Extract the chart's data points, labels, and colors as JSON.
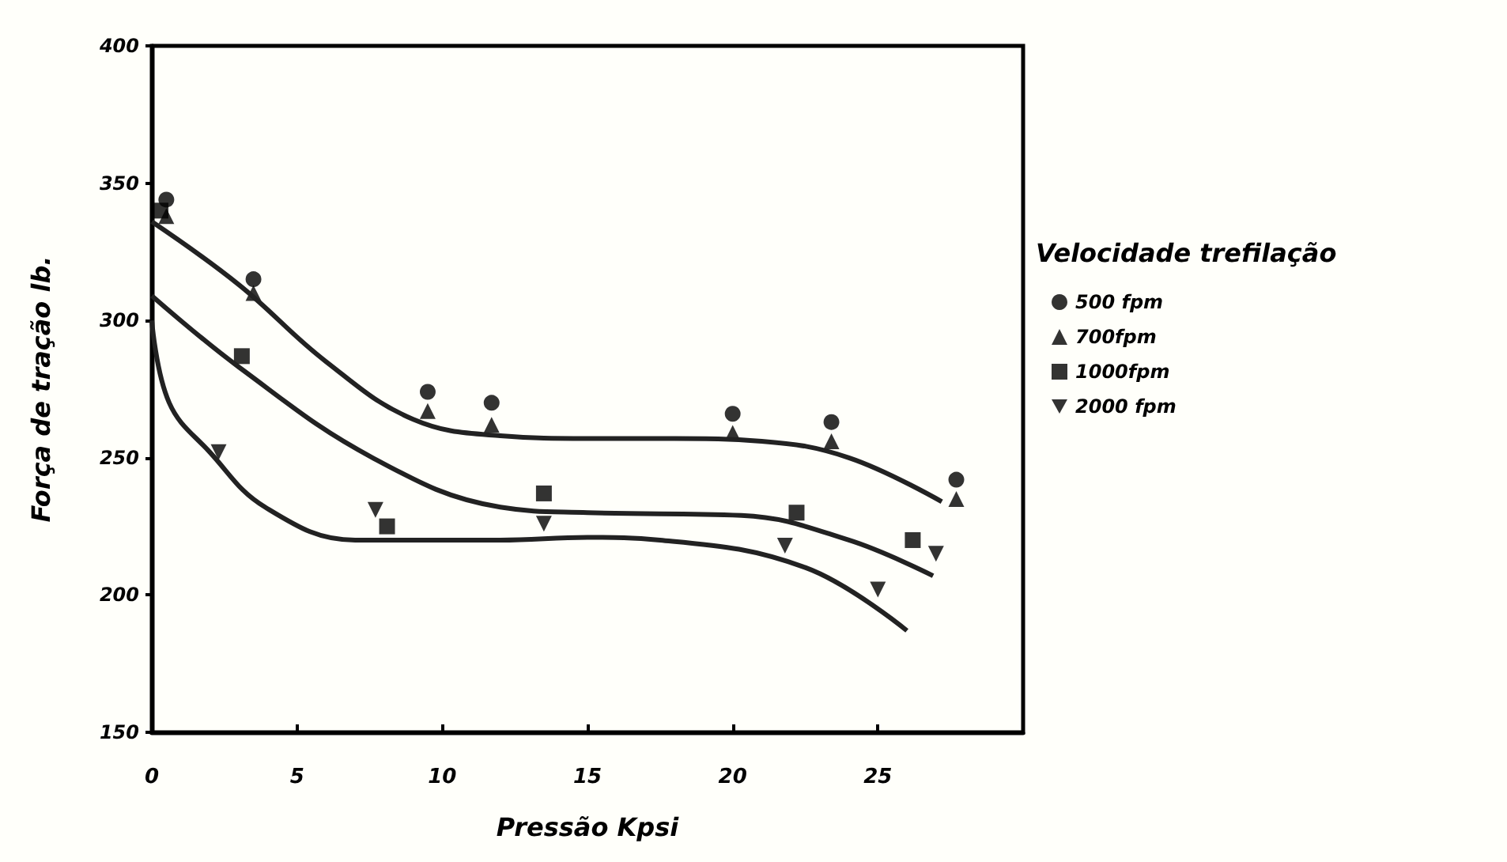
{
  "chart_data": {
    "type": "scatter",
    "xlabel": "Pressão Kpsi",
    "ylabel": "Força de tração lb.",
    "legend_title": "Velocidade trefilação",
    "xlim": [
      0,
      30
    ],
    "xticks": [
      0,
      5,
      10,
      15,
      20,
      25
    ],
    "ylim": [
      150,
      400
    ],
    "yticks": [
      150,
      200,
      250,
      300,
      350,
      400
    ],
    "grid": false,
    "legend": "right",
    "series": [
      {
        "name": "500 fpm",
        "color": "#000000",
        "marker": "circle",
        "x": [
          0.5,
          3.5,
          9.5,
          11.7,
          20,
          23.4,
          27.7
        ],
        "values": [
          344,
          315,
          274,
          270,
          266,
          263,
          242
        ]
      },
      {
        "name": "700fpm",
        "color": "#000000",
        "marker": "triangle",
        "x": [
          0.5,
          3.5,
          9.5,
          11.7,
          20,
          23.4,
          27.7
        ],
        "values": [
          338,
          310,
          267,
          262,
          259,
          256,
          235
        ]
      },
      {
        "name": "1000fpm",
        "color": "#000000",
        "marker": "square",
        "x": [
          0.3,
          3.1,
          8.1,
          13.5,
          22.2,
          26.2
        ],
        "values": [
          340,
          287,
          225,
          237,
          230,
          220
        ]
      },
      {
        "name": "2000 fpm",
        "color": "#000000",
        "marker": "triangle-down",
        "x": [
          2.3,
          7.7,
          13.5,
          21.8,
          25,
          27
        ],
        "values": [
          252,
          231,
          226,
          218,
          202,
          215
        ]
      },
      {
        "type": "line",
        "color": "#222222",
        "marker": "none",
        "x": [
          0,
          3,
          6,
          9,
          12,
          15,
          18,
          21,
          24,
          27.2
        ],
        "values": [
          336,
          313,
          285,
          264,
          258,
          257,
          257,
          256,
          250,
          234
        ]
      },
      {
        "type": "line",
        "color": "#222222",
        "marker": "none",
        "x": [
          0,
          3,
          7.6,
          12,
          15,
          20.3,
          24,
          26.9
        ],
        "values": [
          309,
          283,
          250,
          232,
          230,
          229,
          220,
          207
        ]
      },
      {
        "type": "line",
        "color": "#222222",
        "marker": "none",
        "x": [
          0,
          0.6,
          2,
          3.9,
          7,
          12,
          15,
          17.5,
          22.5,
          26
        ],
        "values": [
          300,
          270,
          252,
          232,
          220,
          220,
          221,
          220,
          210,
          187
        ]
      }
    ]
  }
}
